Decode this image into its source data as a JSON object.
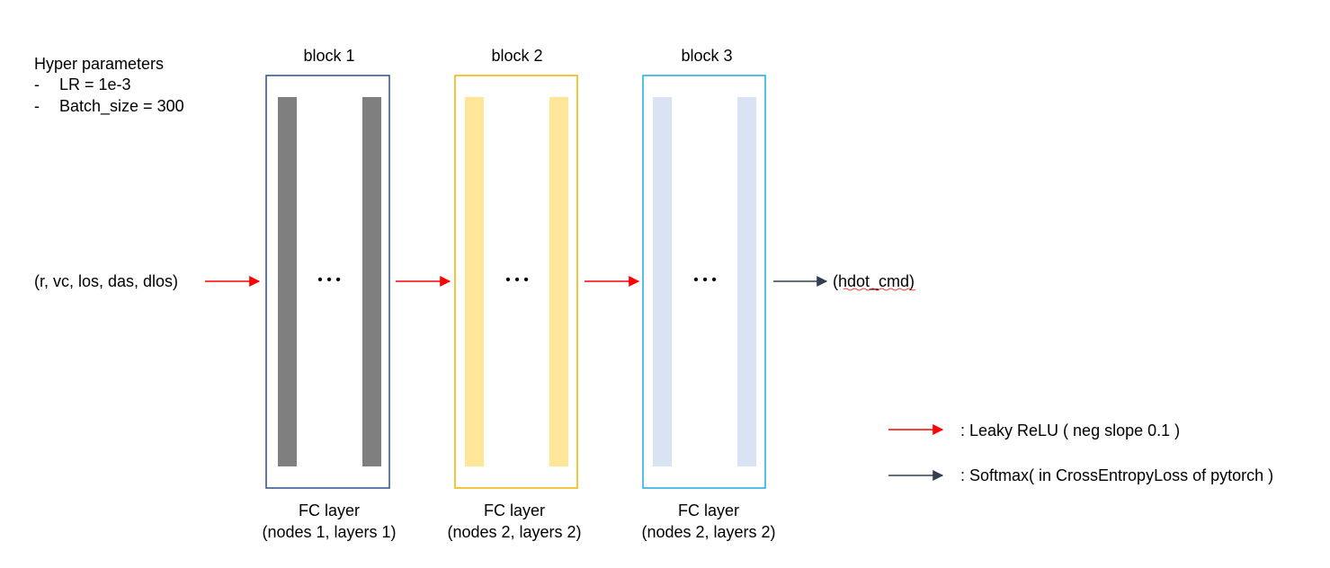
{
  "hyper_parameters": {
    "title": "Hyper parameters",
    "bullet": "-",
    "items": [
      "LR = 1e-3",
      "Batch_size = 300"
    ]
  },
  "input_label": "(r, vc, los, das, dlos)",
  "output_label": "(hdot_cmd)",
  "ellipsis": "• • •",
  "blocks": [
    {
      "title": "block 1",
      "footer_line1": "FC layer",
      "footer_line2": "(nodes 1, layers 1)",
      "border_color": "#2f4f8f",
      "bar_color": "#7f7f7f"
    },
    {
      "title": "block 2",
      "footer_line1": "FC layer",
      "footer_line2": "(nodes 2, layers 2)",
      "border_color": "#f0b400",
      "bar_color": "#ffe699"
    },
    {
      "title": "block 3",
      "footer_line1": "FC layer",
      "footer_line2": "(nodes 2, layers 2)",
      "border_color": "#1fa8e0",
      "bar_color": "#dae3f3"
    }
  ],
  "legend": {
    "items": [
      {
        "label": ": Leaky ReLU ( neg slope 0.1 )",
        "color": "#ff0000"
      },
      {
        "label": ": Softmax( in CrossEntropyLoss of pytorch )",
        "color": "#333f50"
      }
    ]
  },
  "colors": {
    "relu_arrow": "#ff0000",
    "softmax_arrow": "#333f50",
    "underline": "#ff0000"
  }
}
